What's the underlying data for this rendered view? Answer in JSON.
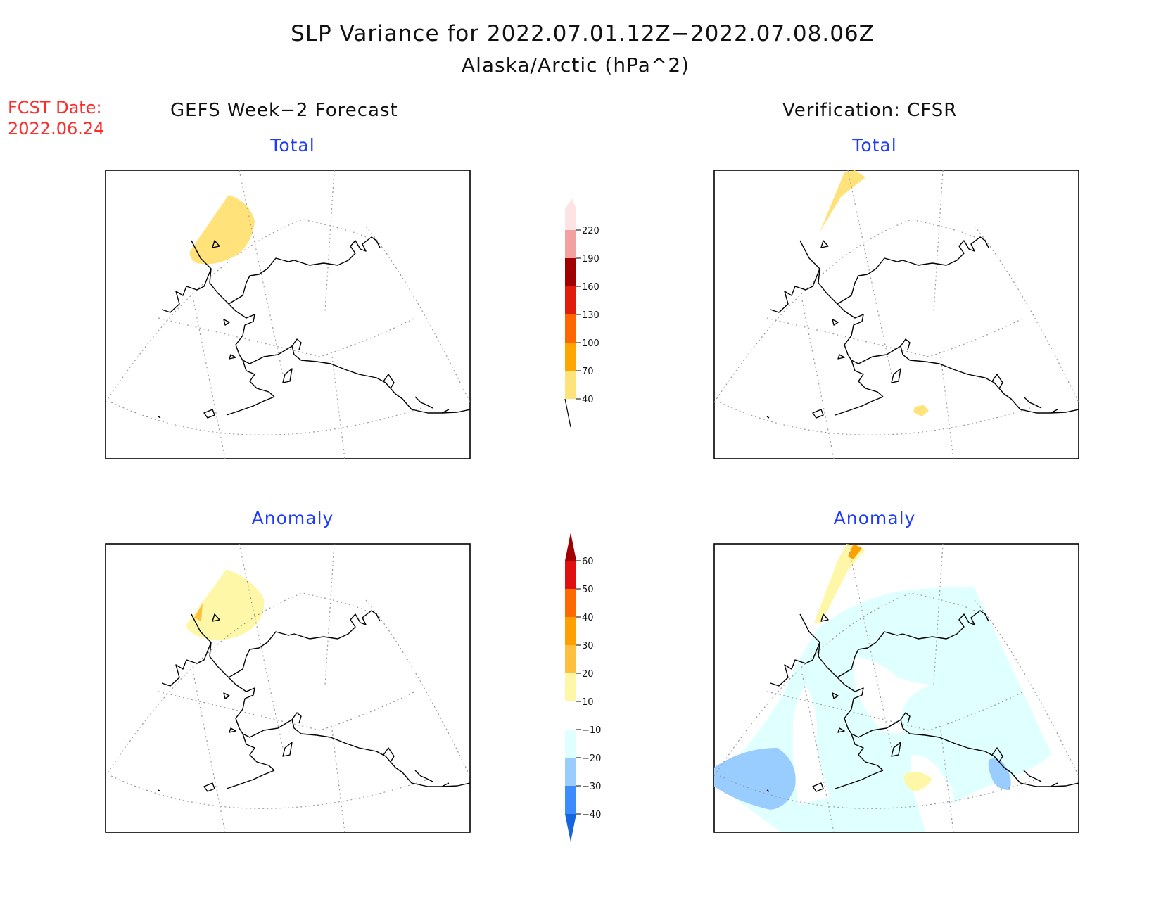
{
  "header": {
    "title": "SLP Variance for 2022.07.01.12Z−2022.07.08.06Z",
    "subtitle": "Alaska/Arctic (hPa^2)"
  },
  "forecast_date": {
    "label": "FCST Date:",
    "value": "2022.06.24"
  },
  "columns": {
    "left": "GEFS Week−2 Forecast",
    "right": "Verification: CFSR"
  },
  "panels": {
    "forecast_total": "Total",
    "verification_total": "Total",
    "forecast_anomaly": "Anomaly",
    "verification_anomaly": "Anomaly"
  },
  "colorbars": {
    "total": {
      "levels": [
        "40",
        "70",
        "100",
        "130",
        "160",
        "190",
        "220"
      ],
      "colors": [
        "#ffe27a",
        "#ffa500",
        "#ff6600",
        "#e01c0b",
        "#a00000",
        "#f2a0a0",
        "#fde3e3"
      ]
    },
    "anomaly": {
      "levels": [
        "−40",
        "−30",
        "−20",
        "−10",
        "10",
        "20",
        "30",
        "40",
        "50",
        "60"
      ],
      "colors": [
        "#1565e0",
        "#3d8cff",
        "#99ccff",
        "#e0ffff",
        "#ffffff",
        "#fff7a8",
        "#ffc040",
        "#ffa000",
        "#ff6a00",
        "#e01010",
        "#a00000"
      ]
    }
  },
  "colors": {
    "title_text": "#111111",
    "panel_title": "#1f3bff",
    "forecast_date": "#ff2a2a"
  }
}
